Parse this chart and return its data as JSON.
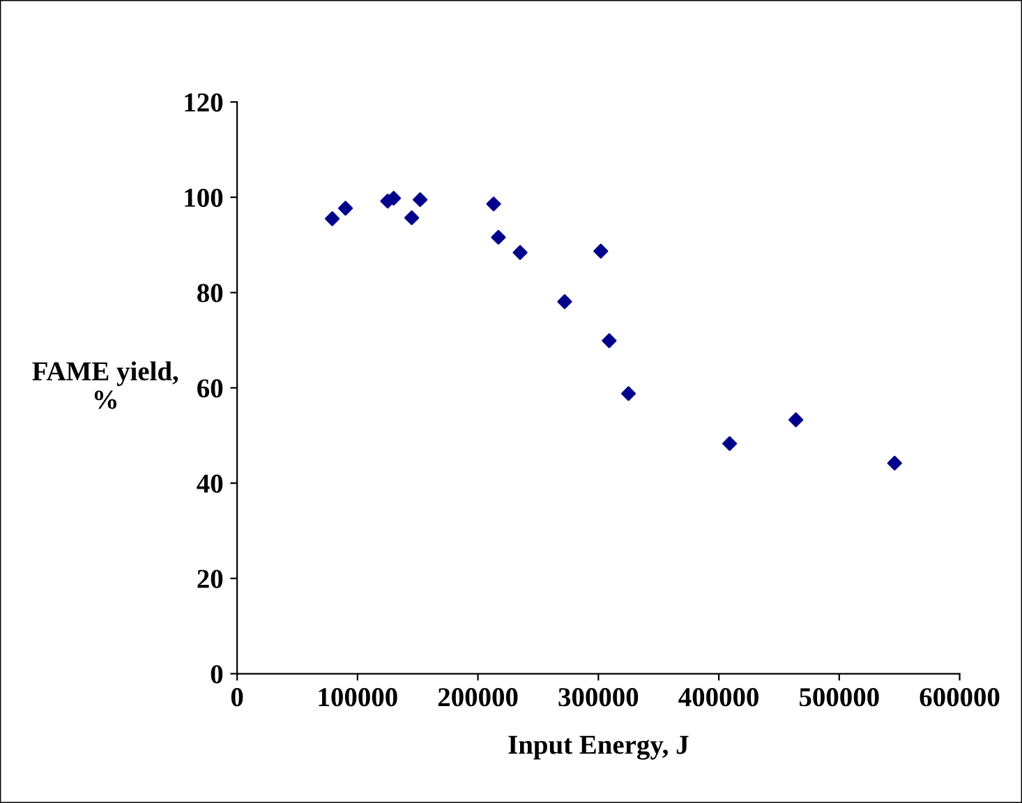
{
  "chart_data": {
    "type": "scatter",
    "xlabel": "Input Energy, J",
    "ylabel": "FAME yield,\n%",
    "x": [
      79000,
      90000,
      125000,
      130000,
      145000,
      152000,
      213000,
      217000,
      235000,
      272000,
      302000,
      309000,
      325000,
      409000,
      464000,
      546000
    ],
    "series": [
      {
        "color": "#00008b",
        "values": [
          95.5,
          97.7,
          99.2,
          99.8,
          95.7,
          99.5,
          98.6,
          91.6,
          88.4,
          78.1,
          88.7,
          69.9,
          58.8,
          48.3,
          53.3,
          44.2
        ]
      }
    ],
    "xlim": [
      0,
      600000
    ],
    "xticks": [
      0,
      100000,
      200000,
      300000,
      400000,
      500000,
      600000
    ],
    "ylim": [
      0,
      120
    ],
    "yticks": [
      0,
      20,
      40,
      60,
      80,
      100,
      120
    ],
    "grid": false,
    "legend": false,
    "marker": "diamond"
  }
}
